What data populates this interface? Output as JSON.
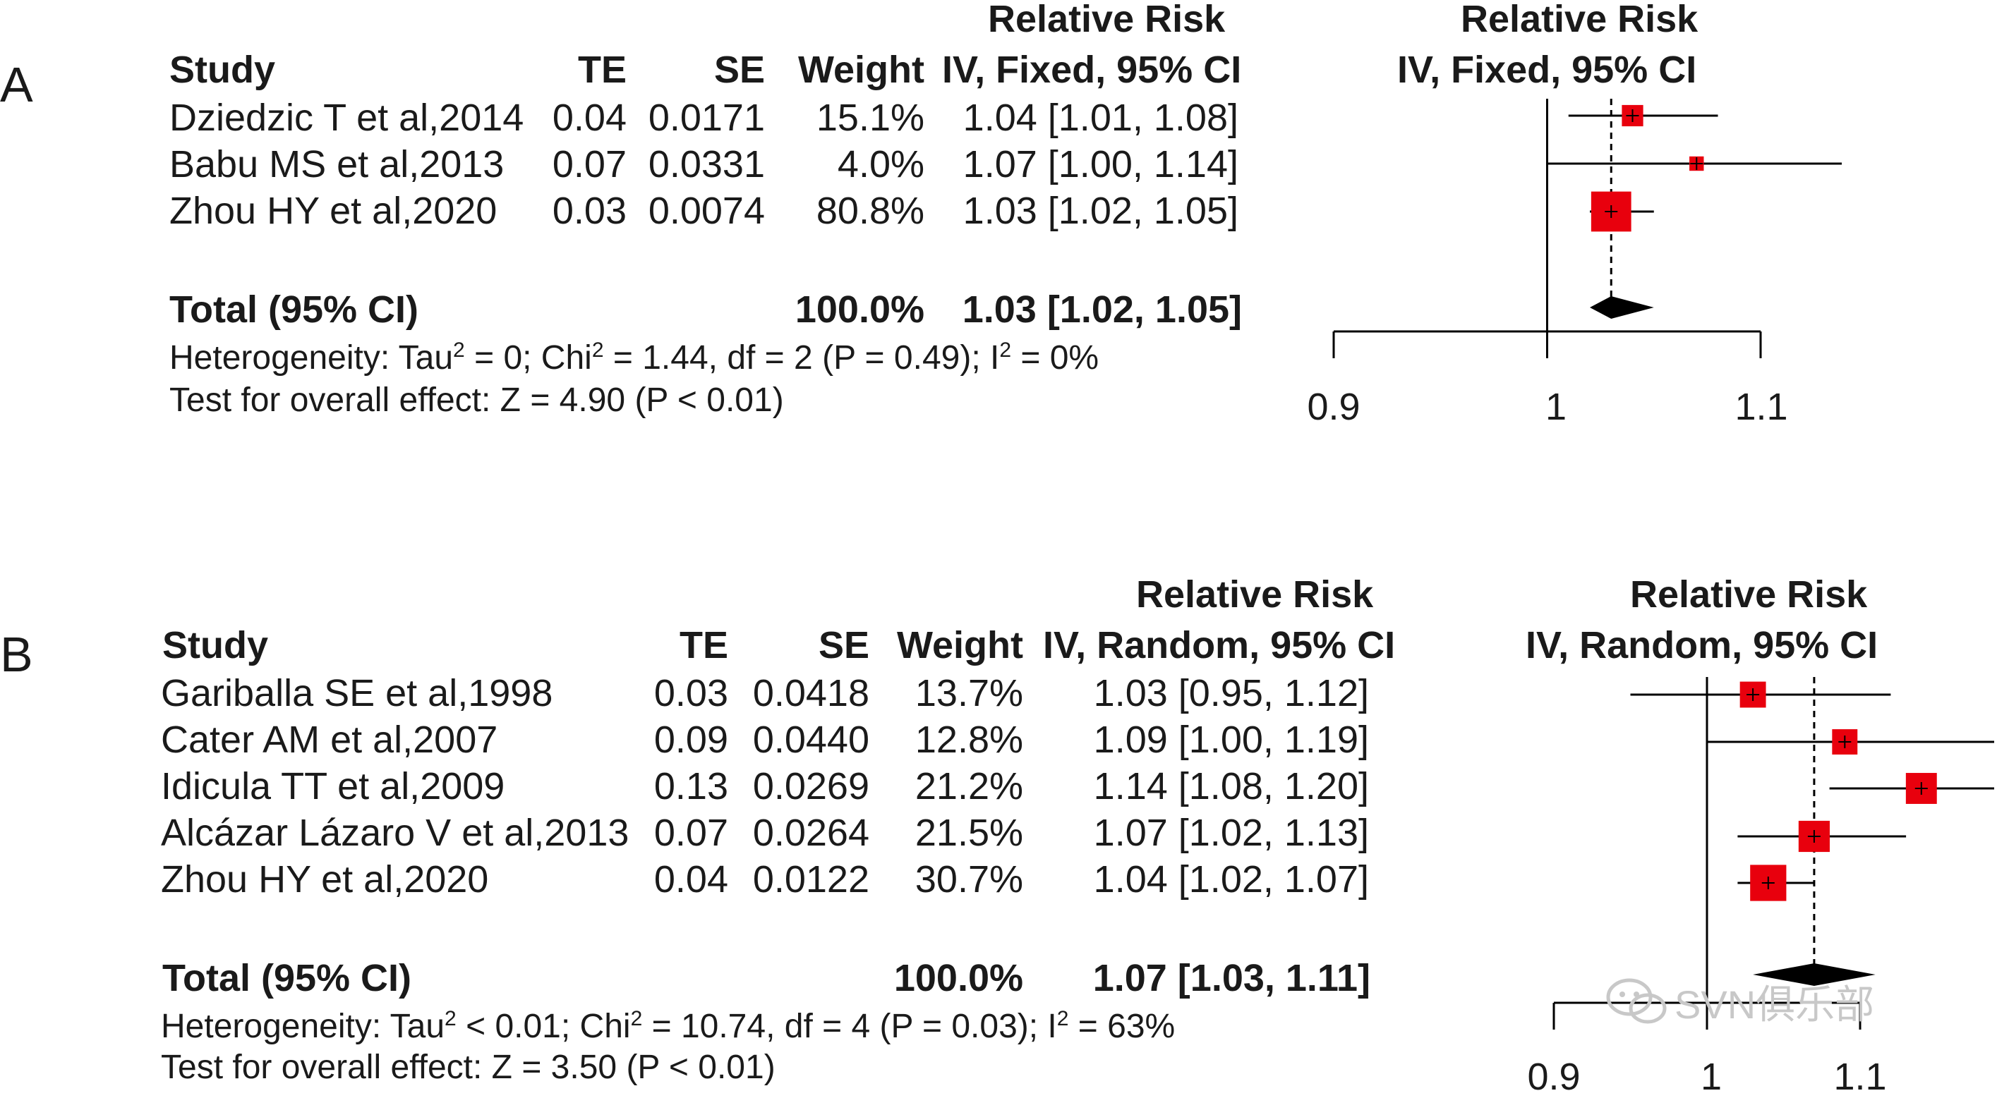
{
  "watermark": {
    "text": "SVN俱乐部",
    "icon": "wechat-bubble-icon"
  },
  "colors": {
    "box": "#e8000d",
    "diamond": "#000000",
    "line": "#000000"
  },
  "chart_data": [
    {
      "panel": "A",
      "type": "forest",
      "columns": {
        "study": "Study",
        "te": "TE",
        "se": "SE",
        "weight": "Weight",
        "ci_header1": "Relative Risk",
        "ci_header2": "IV, Fixed, 95% CI"
      },
      "plot_header1": "Relative Risk",
      "plot_header2": "IV, Fixed, 95% CI",
      "studies": [
        {
          "name": "Dziedzic T et al,2014",
          "te": "0.04",
          "se": "0.0171",
          "weight": "15.1%",
          "ci": "1.04 [1.01, 1.08]",
          "rr": 1.04,
          "lo": 1.01,
          "hi": 1.08,
          "w": 15.1
        },
        {
          "name": "Babu MS et al,2013",
          "te": "0.07",
          "se": "0.0331",
          "weight": "4.0%",
          "ci": "1.07 [1.00, 1.14]",
          "rr": 1.07,
          "lo": 1.0,
          "hi": 1.14,
          "w": 4.0
        },
        {
          "name": "Zhou HY et al,2020",
          "te": "0.03",
          "se": "0.0074",
          "weight": "80.8%",
          "ci": "1.03 [1.02, 1.05]",
          "rr": 1.03,
          "lo": 1.02,
          "hi": 1.05,
          "w": 80.8
        }
      ],
      "total": {
        "label": "Total (95% CI)",
        "weight": "100.0%",
        "ci": "1.03 [1.02, 1.05]",
        "rr": 1.03,
        "lo": 1.02,
        "hi": 1.05
      },
      "heterogeneity": {
        "p1": "Heterogeneity: Tau",
        "p2": " = 0; Chi",
        "p3": " = 1.44, df = 2 (P = 0.49); I",
        "p4": " = 0%",
        "sup": "2"
      },
      "overall": "Test for overall effect: Z = 4.90 (P < 0.01)",
      "x_ticks": [
        "0.9",
        "1",
        "1.1"
      ],
      "xlim": [
        0.9,
        1.1
      ]
    },
    {
      "panel": "B",
      "type": "forest",
      "columns": {
        "study": "Study",
        "te": "TE",
        "se": "SE",
        "weight": "Weight",
        "ci_header1": "Relative Risk",
        "ci_header2": "IV, Random, 95% CI"
      },
      "plot_header1": "Relative Risk",
      "plot_header2": "IV, Random, 95% CI",
      "studies": [
        {
          "name": "Gariballa SE et al,1998",
          "te": "0.03",
          "se": "0.0418",
          "weight": "13.7%",
          "ci": "1.03 [0.95, 1.12]",
          "rr": 1.03,
          "lo": 0.95,
          "hi": 1.12,
          "w": 13.7
        },
        {
          "name": "Cater AM et al,2007",
          "te": "0.09",
          "se": "0.0440",
          "weight": "12.8%",
          "ci": "1.09 [1.00, 1.19]",
          "rr": 1.09,
          "lo": 1.0,
          "hi": 1.19,
          "w": 12.8
        },
        {
          "name": "Idicula TT et al,2009",
          "te": "0.13",
          "se": "0.0269",
          "weight": "21.2%",
          "ci": "1.14 [1.08, 1.20]",
          "rr": 1.14,
          "lo": 1.08,
          "hi": 1.2,
          "w": 21.2
        },
        {
          "name": "Alcázar Lázaro V et al,2013",
          "te": "0.07",
          "se": "0.0264",
          "weight": "21.5%",
          "ci": "1.07 [1.02, 1.13]",
          "rr": 1.07,
          "lo": 1.02,
          "hi": 1.13,
          "w": 21.5
        },
        {
          "name": "Zhou HY et al,2020",
          "te": "0.04",
          "se": "0.0122",
          "weight": "30.7%",
          "ci": "1.04 [1.02, 1.07]",
          "rr": 1.04,
          "lo": 1.02,
          "hi": 1.07,
          "w": 30.7
        }
      ],
      "total": {
        "label": "Total (95% CI)",
        "weight": "100.0%",
        "ci": "1.07 [1.03, 1.11]",
        "rr": 1.07,
        "lo": 1.03,
        "hi": 1.11
      },
      "heterogeneity": {
        "p1": "Heterogeneity: Tau",
        "p2": " < 0.01; Chi",
        "p3": " = 10.74, df = 4 (P = 0.03); I",
        "p4": " = 63%",
        "sup": "2"
      },
      "overall": "Test for overall effect: Z = 3.50 (P < 0.01)",
      "x_ticks": [
        "0.9",
        "1",
        "1.1"
      ],
      "xlim": [
        0.9,
        1.1
      ]
    }
  ]
}
